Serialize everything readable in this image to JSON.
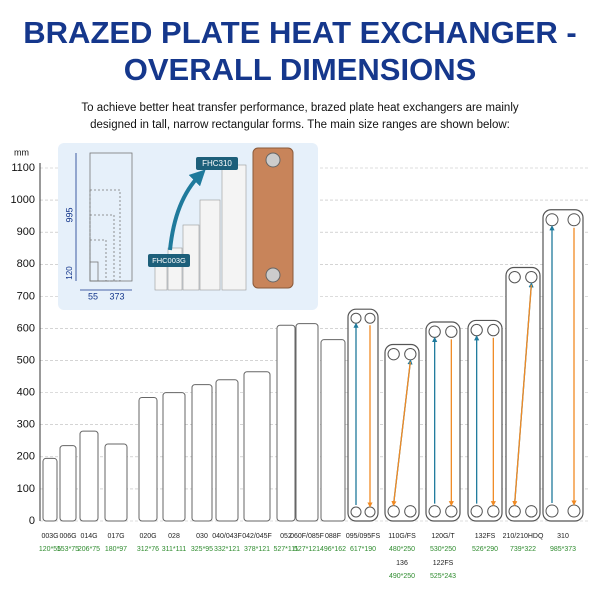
{
  "chart_data": {
    "type": "bar",
    "title": [
      "BRAZED PLATE HEAT EXCHANGER -",
      "OVERALL DIMENSIONS"
    ],
    "subtitle": [
      "To achieve better heat transfer performance, brazed plate heat exchangers are mainly",
      "designed in tall, narrow rectangular forms. The main size ranges are shown below:"
    ],
    "y_label": "mm",
    "categories": [
      "003G",
      "006G",
      "014G",
      "017G",
      "020G",
      "028",
      "030",
      "040/043F",
      "042/045F",
      "052",
      "060F/085F",
      "088F",
      "095/095FS",
      "110G/FS",
      "120G/T",
      "132FS",
      "210/210HDQ",
      "310"
    ],
    "values": [
      195,
      235,
      280,
      240,
      385,
      400,
      425,
      440,
      465,
      610,
      615,
      565,
      660,
      550,
      620,
      625,
      790,
      970
    ],
    "dimensions": [
      "120*55",
      "153*75",
      "206*75",
      "180*97",
      "312*76",
      "311*111",
      "325*95",
      "332*121",
      "378*121",
      "527*111",
      "527*121",
      "496*162",
      "617*190",
      "480*250",
      "530*250",
      "526*290",
      "739*322",
      "985*373"
    ],
    "extra_labels": [
      [
        "136",
        "490*250"
      ],
      [
        "122FS",
        "525*243"
      ]
    ],
    "ylim": [
      0,
      1100
    ],
    "yticks": [
      0,
      100,
      200,
      300,
      400,
      500,
      600,
      700,
      800,
      900,
      1000,
      1100
    ],
    "grid": true,
    "inset": {
      "large_model": "FHC310",
      "small_model": "FHC003G",
      "height_large": "995",
      "height_small": "120",
      "width_small": "55",
      "width_large": "373"
    }
  }
}
